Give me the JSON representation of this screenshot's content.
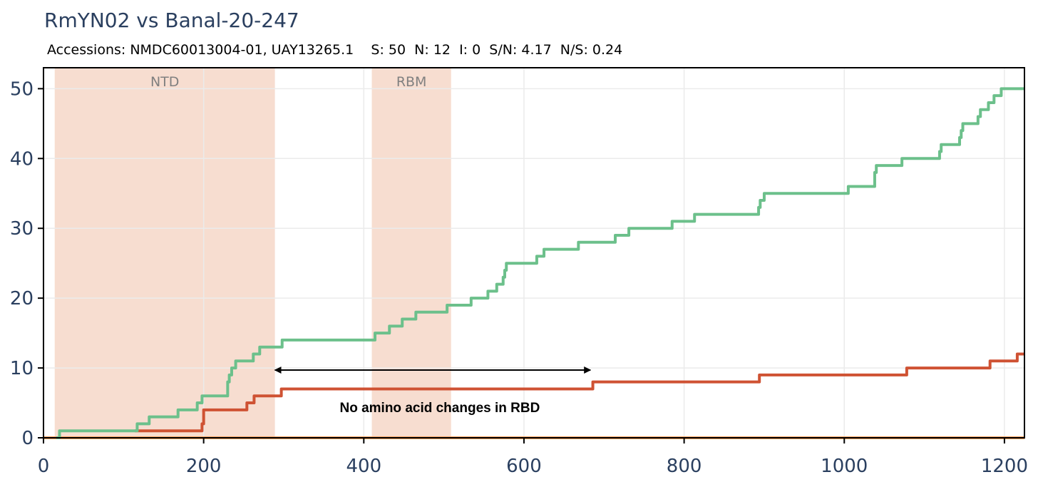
{
  "chart_data": {
    "type": "line",
    "title": "RmYN02 vs Banal-20-247",
    "subtitle": "Accessions: NMDC60013004-01, UAY13265.1    S: 50  N: 12  I: 0  S/N: 4.17  N/S: 0.24",
    "xlabel": "",
    "ylabel": "",
    "xlim": [
      0,
      1225
    ],
    "ylim": [
      0,
      53
    ],
    "x_ticks": [
      0,
      200,
      400,
      600,
      800,
      1000,
      1200
    ],
    "y_ticks": [
      0,
      10,
      20,
      30,
      40,
      50
    ],
    "grid": true,
    "regions": [
      {
        "label": "NTD",
        "start": 14,
        "end": 289,
        "color": "#f7ddd0"
      },
      {
        "label": "RBM",
        "start": 410,
        "end": 509,
        "color": "#f7ddd0"
      }
    ],
    "annotation": {
      "text": "No amino acid changes in RBD",
      "x_start": 289,
      "x_end": 683,
      "y_arrow": 9.7,
      "y_text": 4.4
    },
    "series": [
      {
        "name": "S",
        "color": "#6cc08b",
        "steps": [
          [
            16,
            0
          ],
          [
            20,
            1
          ],
          [
            114,
            1
          ],
          [
            117,
            2
          ],
          [
            130,
            2
          ],
          [
            132,
            3
          ],
          [
            164,
            3
          ],
          [
            168,
            4
          ],
          [
            188,
            4
          ],
          [
            192,
            5
          ],
          [
            195,
            5
          ],
          [
            198,
            6
          ],
          [
            226,
            6
          ],
          [
            230,
            8
          ],
          [
            232,
            9
          ],
          [
            235,
            10
          ],
          [
            240,
            11
          ],
          [
            257,
            11
          ],
          [
            262,
            12
          ],
          [
            268,
            12
          ],
          [
            270,
            13
          ],
          [
            292,
            13
          ],
          [
            298,
            14
          ],
          [
            412,
            14
          ],
          [
            414,
            15
          ],
          [
            430,
            15
          ],
          [
            432,
            16
          ],
          [
            446,
            16
          ],
          [
            448,
            17
          ],
          [
            462,
            17
          ],
          [
            465,
            18
          ],
          [
            501,
            18
          ],
          [
            504,
            19
          ],
          [
            531,
            19
          ],
          [
            534,
            20
          ],
          [
            552,
            20
          ],
          [
            555,
            21
          ],
          [
            562,
            21
          ],
          [
            566,
            22
          ],
          [
            572,
            22
          ],
          [
            574,
            23
          ],
          [
            576,
            24
          ],
          [
            578,
            25
          ],
          [
            612,
            25
          ],
          [
            616,
            26
          ],
          [
            622,
            26
          ],
          [
            625,
            27
          ],
          [
            665,
            27
          ],
          [
            668,
            28
          ],
          [
            712,
            28
          ],
          [
            714,
            29
          ],
          [
            728,
            29
          ],
          [
            731,
            30
          ],
          [
            782,
            30
          ],
          [
            785,
            31
          ],
          [
            810,
            31
          ],
          [
            813,
            32
          ],
          [
            890,
            32
          ],
          [
            893,
            33
          ],
          [
            895,
            34
          ],
          [
            900,
            35
          ],
          [
            1001,
            35
          ],
          [
            1005,
            36
          ],
          [
            1035,
            36
          ],
          [
            1038,
            38
          ],
          [
            1040,
            39
          ],
          [
            1068,
            39
          ],
          [
            1072,
            40
          ],
          [
            1116,
            40
          ],
          [
            1119,
            41
          ],
          [
            1121,
            42
          ],
          [
            1142,
            42
          ],
          [
            1144,
            43
          ],
          [
            1146,
            44
          ],
          [
            1148,
            45
          ],
          [
            1165,
            45
          ],
          [
            1167,
            46
          ],
          [
            1170,
            47
          ],
          [
            1178,
            47
          ],
          [
            1180,
            48
          ],
          [
            1185,
            48
          ],
          [
            1187,
            49
          ],
          [
            1193,
            49
          ],
          [
            1196,
            50
          ],
          [
            1225,
            50
          ]
        ]
      },
      {
        "name": "N",
        "color": "#cf5233",
        "steps": [
          [
            114,
            1
          ],
          [
            192,
            1
          ],
          [
            198,
            2
          ],
          [
            200,
            4
          ],
          [
            251,
            4
          ],
          [
            254,
            5
          ],
          [
            261,
            5
          ],
          [
            263,
            6
          ],
          [
            290,
            6
          ],
          [
            297,
            7
          ],
          [
            683,
            7
          ],
          [
            686,
            8
          ],
          [
            891,
            8
          ],
          [
            894,
            9
          ],
          [
            1075,
            9
          ],
          [
            1078,
            10
          ],
          [
            1180,
            10
          ],
          [
            1182,
            11
          ],
          [
            1214,
            11
          ],
          [
            1216,
            12
          ],
          [
            1225,
            12
          ]
        ]
      },
      {
        "name": "I",
        "color": "#f5a25d",
        "steps": [
          [
            0,
            0
          ],
          [
            1225,
            0
          ]
        ]
      }
    ]
  }
}
